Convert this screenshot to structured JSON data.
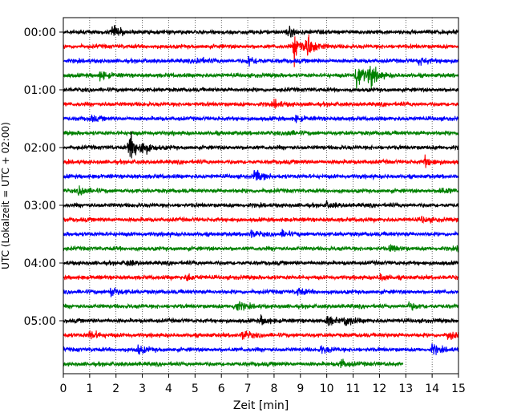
{
  "chart_data": {
    "type": "line",
    "title": "",
    "xlabel": "Zeit  [min]",
    "ylabel": "UTC (Lokalzeit = UTC + 02:00)",
    "xlim": [
      0,
      15
    ],
    "x_ticks": [
      "0",
      "1",
      "2",
      "3",
      "4",
      "5",
      "6",
      "7",
      "8",
      "9",
      "10",
      "11",
      "12",
      "13",
      "14",
      "15"
    ],
    "y_ticks": [
      "00:00",
      "01:00",
      "02:00",
      "03:00",
      "04:00",
      "05:00"
    ],
    "rows_per_hour": 4,
    "trace_minutes": 15,
    "last_trace_end_min": 12.9,
    "grid": "vertical dotted lines at each minute",
    "colors": [
      "#000000",
      "#ff0000",
      "#0000ff",
      "#008000"
    ],
    "series": [
      {
        "label": "00:00",
        "color": "#000000",
        "events": [
          {
            "t": 1.85,
            "amp": 1.2
          },
          {
            "t": 8.5,
            "amp": 0.9
          }
        ]
      },
      {
        "label": "00:15",
        "color": "#ff0000",
        "events": [
          {
            "t": 8.75,
            "amp": 2.6
          },
          {
            "t": 9.2,
            "amp": 2.4
          }
        ]
      },
      {
        "label": "00:30",
        "color": "#0000ff",
        "events": [
          {
            "t": 5.05,
            "amp": 0.6
          },
          {
            "t": 7.0,
            "amp": 1.0
          },
          {
            "t": 13.5,
            "amp": 0.7
          }
        ]
      },
      {
        "label": "00:45",
        "color": "#008000",
        "events": [
          {
            "t": 1.4,
            "amp": 0.8
          },
          {
            "t": 11.1,
            "amp": 2.8
          },
          {
            "t": 11.6,
            "amp": 2.0
          }
        ]
      },
      {
        "label": "01:00",
        "color": "#000000",
        "events": []
      },
      {
        "label": "01:15",
        "color": "#ff0000",
        "events": [
          {
            "t": 8.0,
            "amp": 0.6
          }
        ]
      },
      {
        "label": "01:30",
        "color": "#0000ff",
        "events": [
          {
            "t": 1.0,
            "amp": 0.5
          },
          {
            "t": 8.8,
            "amp": 0.5
          }
        ]
      },
      {
        "label": "01:45",
        "color": "#008000",
        "events": [
          {
            "t": 8.5,
            "amp": 0.4
          }
        ]
      },
      {
        "label": "02:00",
        "color": "#000000",
        "events": [
          {
            "t": 2.5,
            "amp": 2.8
          },
          {
            "t": 2.95,
            "amp": 1.2
          }
        ]
      },
      {
        "label": "02:15",
        "color": "#ff0000",
        "events": [
          {
            "t": 13.7,
            "amp": 0.9
          }
        ]
      },
      {
        "label": "02:30",
        "color": "#0000ff",
        "events": [
          {
            "t": 7.25,
            "amp": 1.1
          }
        ]
      },
      {
        "label": "02:45",
        "color": "#008000",
        "events": [
          {
            "t": 0.6,
            "amp": 0.9
          },
          {
            "t": 14.3,
            "amp": 0.6
          }
        ]
      },
      {
        "label": "03:00",
        "color": "#000000",
        "events": [
          {
            "t": 10.0,
            "amp": 0.5
          }
        ]
      },
      {
        "label": "03:15",
        "color": "#ff0000",
        "events": [
          {
            "t": 13.6,
            "amp": 0.5
          }
        ]
      },
      {
        "label": "03:30",
        "color": "#0000ff",
        "events": [
          {
            "t": 7.1,
            "amp": 0.6
          },
          {
            "t": 8.3,
            "amp": 0.5
          }
        ]
      },
      {
        "label": "03:45",
        "color": "#008000",
        "events": [
          {
            "t": 12.4,
            "amp": 0.6
          },
          {
            "t": 15.0,
            "amp": 0.8
          }
        ]
      },
      {
        "label": "04:00",
        "color": "#000000",
        "events": [
          {
            "t": 2.4,
            "amp": 0.5
          }
        ]
      },
      {
        "label": "04:15",
        "color": "#ff0000",
        "events": [
          {
            "t": 4.7,
            "amp": 0.6
          },
          {
            "t": 12.0,
            "amp": 0.6
          }
        ]
      },
      {
        "label": "04:30",
        "color": "#0000ff",
        "events": [
          {
            "t": 1.8,
            "amp": 0.8
          },
          {
            "t": 8.9,
            "amp": 0.6
          }
        ]
      },
      {
        "label": "04:45",
        "color": "#008000",
        "events": [
          {
            "t": 6.5,
            "amp": 1.1
          },
          {
            "t": 13.1,
            "amp": 0.6
          }
        ]
      },
      {
        "label": "05:00",
        "color": "#000000",
        "events": [
          {
            "t": 7.5,
            "amp": 0.7
          },
          {
            "t": 10.0,
            "amp": 0.9
          },
          {
            "t": 10.7,
            "amp": 0.9
          }
        ]
      },
      {
        "label": "05:15",
        "color": "#ff0000",
        "events": [
          {
            "t": 1.0,
            "amp": 0.9
          },
          {
            "t": 6.8,
            "amp": 0.8
          },
          {
            "t": 14.6,
            "amp": 0.8
          }
        ]
      },
      {
        "label": "05:30",
        "color": "#0000ff",
        "events": [
          {
            "t": 2.8,
            "amp": 0.8
          },
          {
            "t": 9.8,
            "amp": 0.6
          },
          {
            "t": 14.0,
            "amp": 0.8
          }
        ]
      },
      {
        "label": "05:45",
        "color": "#008000",
        "events": [
          {
            "t": 10.5,
            "amp": 0.8
          }
        ]
      }
    ]
  }
}
